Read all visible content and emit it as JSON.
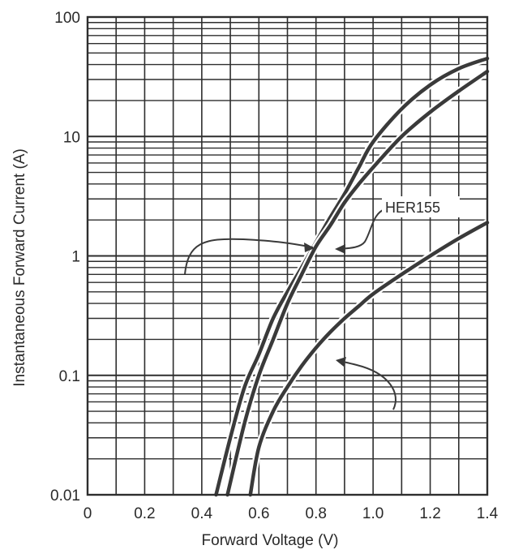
{
  "chart_data": {
    "type": "line",
    "title": "",
    "xlabel": "Forward Voltage (V)",
    "ylabel": "Instantaneous Forward Current (A)",
    "xlim": [
      0,
      1.4
    ],
    "ylim": [
      0.01,
      100
    ],
    "yscale": "log",
    "grid": true,
    "x_ticks": [
      "0",
      "0.2",
      "0.4",
      "0.6",
      "0.8",
      "1.0",
      "1.2",
      "1.4"
    ],
    "y_ticks": [
      "0.01",
      "0.1",
      "1",
      "10",
      "100"
    ],
    "series": [
      {
        "x": [
          0.45,
          0.5,
          0.55,
          0.6,
          0.65,
          0.7,
          0.75,
          0.8,
          0.85,
          0.9,
          0.95,
          1.0,
          1.1,
          1.2,
          1.3,
          1.4
        ],
        "y": [
          0.01,
          0.03,
          0.08,
          0.15,
          0.3,
          0.5,
          0.8,
          1.3,
          2.1,
          3.3,
          5.5,
          9,
          17,
          27,
          37,
          45
        ]
      },
      {
        "x": [
          0.49,
          0.55,
          0.6,
          0.65,
          0.7,
          0.75,
          0.8,
          0.85,
          0.9,
          0.95,
          1.0,
          1.1,
          1.2,
          1.3,
          1.4
        ],
        "y": [
          0.01,
          0.04,
          0.1,
          0.2,
          0.4,
          0.7,
          1.2,
          1.8,
          2.8,
          4.0,
          5.5,
          10,
          16,
          24,
          35
        ]
      },
      {
        "x": [
          0.57,
          0.6,
          0.65,
          0.7,
          0.75,
          0.8,
          0.85,
          0.9,
          0.95,
          1.0,
          1.1,
          1.2,
          1.3,
          1.4
        ],
        "y": [
          0.01,
          0.025,
          0.05,
          0.08,
          0.12,
          0.17,
          0.23,
          0.3,
          0.38,
          0.48,
          0.7,
          1.0,
          1.4,
          1.9
        ]
      }
    ],
    "annotations": [
      {
        "text": "HER155"
      }
    ],
    "colors": {
      "curve": "#3a3a3a",
      "grid": "#2e2e2e",
      "frame": "#2e2e2e"
    }
  }
}
